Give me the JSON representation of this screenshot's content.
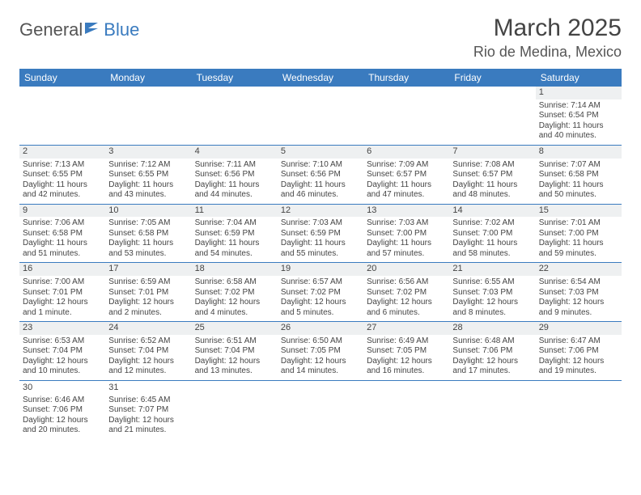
{
  "logo": {
    "part1": "General",
    "part2": "Blue"
  },
  "title": "March 2025",
  "location": "Rio de Medina, Mexico",
  "colors": {
    "header_bg": "#3a7bbf",
    "header_text": "#ffffff",
    "daynum_bg": "#eef0f1",
    "border": "#3a7bbf",
    "text": "#444444"
  },
  "weekdays": [
    "Sunday",
    "Monday",
    "Tuesday",
    "Wednesday",
    "Thursday",
    "Friday",
    "Saturday"
  ],
  "weeks": [
    [
      null,
      null,
      null,
      null,
      null,
      null,
      {
        "n": "1",
        "sr": "Sunrise: 7:14 AM",
        "ss": "Sunset: 6:54 PM",
        "d1": "Daylight: 11 hours",
        "d2": "and 40 minutes."
      }
    ],
    [
      {
        "n": "2",
        "sr": "Sunrise: 7:13 AM",
        "ss": "Sunset: 6:55 PM",
        "d1": "Daylight: 11 hours",
        "d2": "and 42 minutes."
      },
      {
        "n": "3",
        "sr": "Sunrise: 7:12 AM",
        "ss": "Sunset: 6:55 PM",
        "d1": "Daylight: 11 hours",
        "d2": "and 43 minutes."
      },
      {
        "n": "4",
        "sr": "Sunrise: 7:11 AM",
        "ss": "Sunset: 6:56 PM",
        "d1": "Daylight: 11 hours",
        "d2": "and 44 minutes."
      },
      {
        "n": "5",
        "sr": "Sunrise: 7:10 AM",
        "ss": "Sunset: 6:56 PM",
        "d1": "Daylight: 11 hours",
        "d2": "and 46 minutes."
      },
      {
        "n": "6",
        "sr": "Sunrise: 7:09 AM",
        "ss": "Sunset: 6:57 PM",
        "d1": "Daylight: 11 hours",
        "d2": "and 47 minutes."
      },
      {
        "n": "7",
        "sr": "Sunrise: 7:08 AM",
        "ss": "Sunset: 6:57 PM",
        "d1": "Daylight: 11 hours",
        "d2": "and 48 minutes."
      },
      {
        "n": "8",
        "sr": "Sunrise: 7:07 AM",
        "ss": "Sunset: 6:58 PM",
        "d1": "Daylight: 11 hours",
        "d2": "and 50 minutes."
      }
    ],
    [
      {
        "n": "9",
        "sr": "Sunrise: 7:06 AM",
        "ss": "Sunset: 6:58 PM",
        "d1": "Daylight: 11 hours",
        "d2": "and 51 minutes."
      },
      {
        "n": "10",
        "sr": "Sunrise: 7:05 AM",
        "ss": "Sunset: 6:58 PM",
        "d1": "Daylight: 11 hours",
        "d2": "and 53 minutes."
      },
      {
        "n": "11",
        "sr": "Sunrise: 7:04 AM",
        "ss": "Sunset: 6:59 PM",
        "d1": "Daylight: 11 hours",
        "d2": "and 54 minutes."
      },
      {
        "n": "12",
        "sr": "Sunrise: 7:03 AM",
        "ss": "Sunset: 6:59 PM",
        "d1": "Daylight: 11 hours",
        "d2": "and 55 minutes."
      },
      {
        "n": "13",
        "sr": "Sunrise: 7:03 AM",
        "ss": "Sunset: 7:00 PM",
        "d1": "Daylight: 11 hours",
        "d2": "and 57 minutes."
      },
      {
        "n": "14",
        "sr": "Sunrise: 7:02 AM",
        "ss": "Sunset: 7:00 PM",
        "d1": "Daylight: 11 hours",
        "d2": "and 58 minutes."
      },
      {
        "n": "15",
        "sr": "Sunrise: 7:01 AM",
        "ss": "Sunset: 7:00 PM",
        "d1": "Daylight: 11 hours",
        "d2": "and 59 minutes."
      }
    ],
    [
      {
        "n": "16",
        "sr": "Sunrise: 7:00 AM",
        "ss": "Sunset: 7:01 PM",
        "d1": "Daylight: 12 hours",
        "d2": "and 1 minute."
      },
      {
        "n": "17",
        "sr": "Sunrise: 6:59 AM",
        "ss": "Sunset: 7:01 PM",
        "d1": "Daylight: 12 hours",
        "d2": "and 2 minutes."
      },
      {
        "n": "18",
        "sr": "Sunrise: 6:58 AM",
        "ss": "Sunset: 7:02 PM",
        "d1": "Daylight: 12 hours",
        "d2": "and 4 minutes."
      },
      {
        "n": "19",
        "sr": "Sunrise: 6:57 AM",
        "ss": "Sunset: 7:02 PM",
        "d1": "Daylight: 12 hours",
        "d2": "and 5 minutes."
      },
      {
        "n": "20",
        "sr": "Sunrise: 6:56 AM",
        "ss": "Sunset: 7:02 PM",
        "d1": "Daylight: 12 hours",
        "d2": "and 6 minutes."
      },
      {
        "n": "21",
        "sr": "Sunrise: 6:55 AM",
        "ss": "Sunset: 7:03 PM",
        "d1": "Daylight: 12 hours",
        "d2": "and 8 minutes."
      },
      {
        "n": "22",
        "sr": "Sunrise: 6:54 AM",
        "ss": "Sunset: 7:03 PM",
        "d1": "Daylight: 12 hours",
        "d2": "and 9 minutes."
      }
    ],
    [
      {
        "n": "23",
        "sr": "Sunrise: 6:53 AM",
        "ss": "Sunset: 7:04 PM",
        "d1": "Daylight: 12 hours",
        "d2": "and 10 minutes."
      },
      {
        "n": "24",
        "sr": "Sunrise: 6:52 AM",
        "ss": "Sunset: 7:04 PM",
        "d1": "Daylight: 12 hours",
        "d2": "and 12 minutes."
      },
      {
        "n": "25",
        "sr": "Sunrise: 6:51 AM",
        "ss": "Sunset: 7:04 PM",
        "d1": "Daylight: 12 hours",
        "d2": "and 13 minutes."
      },
      {
        "n": "26",
        "sr": "Sunrise: 6:50 AM",
        "ss": "Sunset: 7:05 PM",
        "d1": "Daylight: 12 hours",
        "d2": "and 14 minutes."
      },
      {
        "n": "27",
        "sr": "Sunrise: 6:49 AM",
        "ss": "Sunset: 7:05 PM",
        "d1": "Daylight: 12 hours",
        "d2": "and 16 minutes."
      },
      {
        "n": "28",
        "sr": "Sunrise: 6:48 AM",
        "ss": "Sunset: 7:06 PM",
        "d1": "Daylight: 12 hours",
        "d2": "and 17 minutes."
      },
      {
        "n": "29",
        "sr": "Sunrise: 6:47 AM",
        "ss": "Sunset: 7:06 PM",
        "d1": "Daylight: 12 hours",
        "d2": "and 19 minutes."
      }
    ],
    [
      {
        "n": "30",
        "sr": "Sunrise: 6:46 AM",
        "ss": "Sunset: 7:06 PM",
        "d1": "Daylight: 12 hours",
        "d2": "and 20 minutes."
      },
      {
        "n": "31",
        "sr": "Sunrise: 6:45 AM",
        "ss": "Sunset: 7:07 PM",
        "d1": "Daylight: 12 hours",
        "d2": "and 21 minutes."
      },
      null,
      null,
      null,
      null,
      null
    ]
  ]
}
